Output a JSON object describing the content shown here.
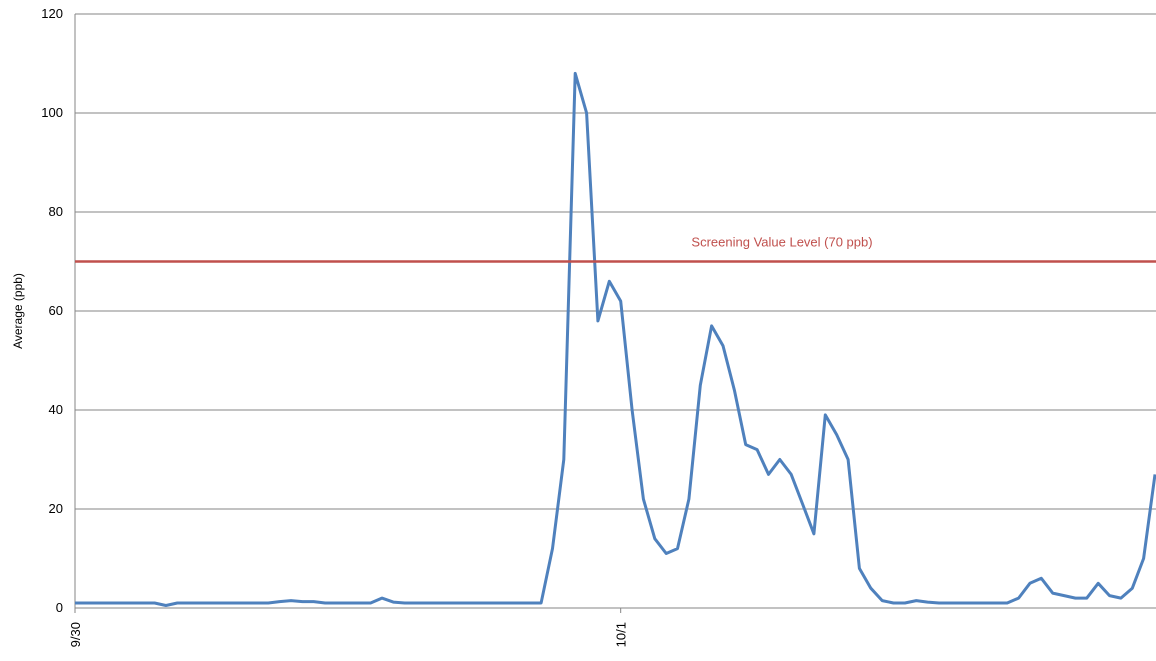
{
  "chart_data": {
    "type": "line",
    "y_label": "Average (ppb)",
    "categories": [
      "9/30",
      null,
      null,
      null,
      null,
      null,
      null,
      null,
      null,
      null,
      null,
      null,
      null,
      null,
      null,
      null,
      null,
      null,
      null,
      null,
      null,
      null,
      null,
      null,
      null,
      null,
      null,
      null,
      null,
      null,
      null,
      null,
      null,
      null,
      null,
      null,
      null,
      null,
      null,
      null,
      null,
      null,
      null,
      null,
      null,
      null,
      null,
      null,
      "10/1",
      null,
      null,
      null,
      null,
      null,
      null,
      null,
      null,
      null,
      null,
      null,
      null,
      null,
      null,
      null,
      null,
      null,
      null,
      null,
      null,
      null,
      null,
      null,
      null,
      null,
      null,
      null,
      null,
      null,
      null,
      null,
      null,
      null,
      null,
      null,
      null,
      null,
      null,
      null,
      null,
      null,
      null,
      null,
      null,
      null,
      null,
      null
    ],
    "series": [
      {
        "name": "Average",
        "color": "#4f81bd",
        "values": [
          1,
          1,
          1,
          1,
          1,
          1,
          1,
          1,
          0.5,
          1,
          1,
          1,
          1,
          1,
          1,
          1,
          1,
          1,
          1.3,
          1.5,
          1.3,
          1.3,
          1,
          1,
          1,
          1,
          1,
          2,
          1.2,
          1,
          1,
          1,
          1,
          1,
          1,
          1,
          1,
          1,
          1,
          1,
          1,
          1,
          12,
          30,
          108,
          100,
          58,
          66,
          62,
          40,
          22,
          14,
          11,
          12,
          22,
          45,
          57,
          53,
          44,
          33,
          32,
          27,
          30,
          27,
          21,
          15,
          39,
          35,
          30,
          8,
          4,
          1.5,
          1,
          1,
          1.5,
          1.2,
          1,
          1,
          1,
          1,
          1,
          1,
          1,
          2,
          5,
          6,
          3,
          2.5,
          2,
          2,
          5,
          2.5,
          2,
          4,
          10,
          27
        ]
      }
    ],
    "reference": {
      "value": 70,
      "label": "Screening Value Level (70 ppb)",
      "color": "#c0504d"
    },
    "ylim": [
      0,
      120
    ],
    "yticks": [
      0,
      20,
      40,
      60,
      80,
      100,
      120
    ],
    "grid": true
  }
}
